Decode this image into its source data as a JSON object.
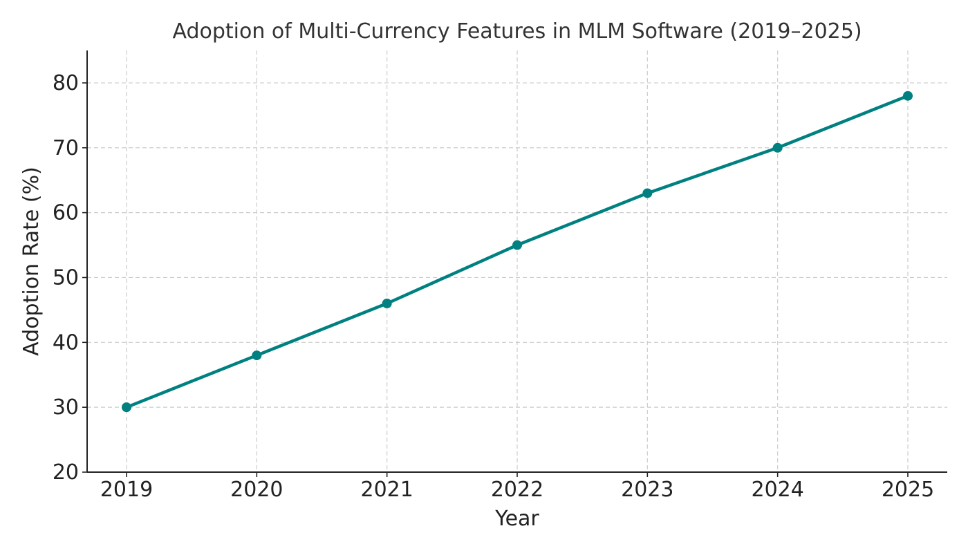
{
  "chart_data": {
    "type": "line",
    "title": "Adoption of Multi-Currency Features in MLM Software (2019–2025)",
    "xlabel": "Year",
    "ylabel": "Adoption Rate (%)",
    "x": [
      "2019",
      "2020",
      "2021",
      "2022",
      "2023",
      "2024",
      "2025"
    ],
    "series": [
      {
        "values": [
          30,
          38,
          46,
          55,
          63,
          70,
          78
        ],
        "color": "#008080",
        "marker": "circle"
      }
    ],
    "ylim": [
      20,
      85
    ],
    "yticks": [
      20,
      30,
      40,
      50,
      60,
      70,
      80
    ],
    "grid": true,
    "grid_style": "dashed"
  }
}
